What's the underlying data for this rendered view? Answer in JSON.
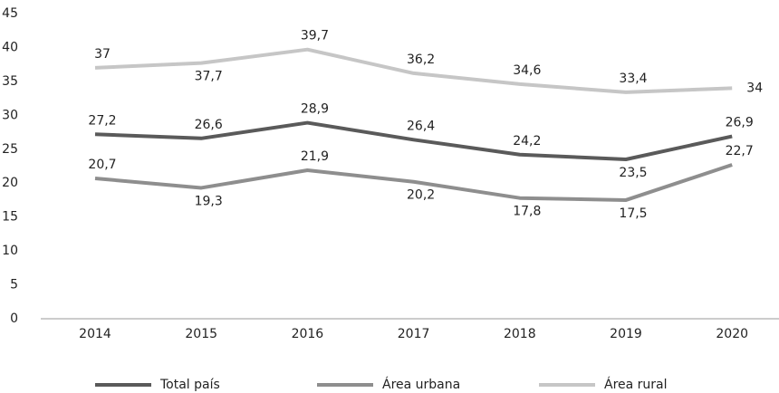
{
  "chart_data": {
    "type": "line",
    "categories": [
      "2014",
      "2015",
      "2016",
      "2017",
      "2018",
      "2019",
      "2020"
    ],
    "series": [
      {
        "name": "Total país",
        "color": "#5a5a5a",
        "values": [
          27.2,
          26.6,
          28.9,
          26.4,
          24.2,
          23.5,
          26.9
        ],
        "value_labels": [
          "27,2",
          "26,6",
          "28,9",
          "26,4",
          "24,2",
          "23,5",
          "26,9"
        ]
      },
      {
        "name": "Área urbana",
        "color": "#8e8e8e",
        "values": [
          20.7,
          19.3,
          21.9,
          20.2,
          17.8,
          17.5,
          22.7
        ],
        "value_labels": [
          "20,7",
          "19,3",
          "21,9",
          "20,2",
          "17,8",
          "17,5",
          "22,7"
        ]
      },
      {
        "name": "Área rural",
        "color": "#c6c6c6",
        "values": [
          37,
          37.7,
          39.7,
          36.2,
          34.6,
          33.4,
          34
        ],
        "value_labels": [
          "37",
          "37,7",
          "39,7",
          "36,2",
          "34,6",
          "33,4",
          "34"
        ]
      }
    ],
    "ylim": [
      0,
      45
    ],
    "yticks": [
      0,
      5,
      10,
      15,
      20,
      25,
      30,
      35,
      40,
      45
    ],
    "grid": false,
    "legend": "bottom"
  }
}
